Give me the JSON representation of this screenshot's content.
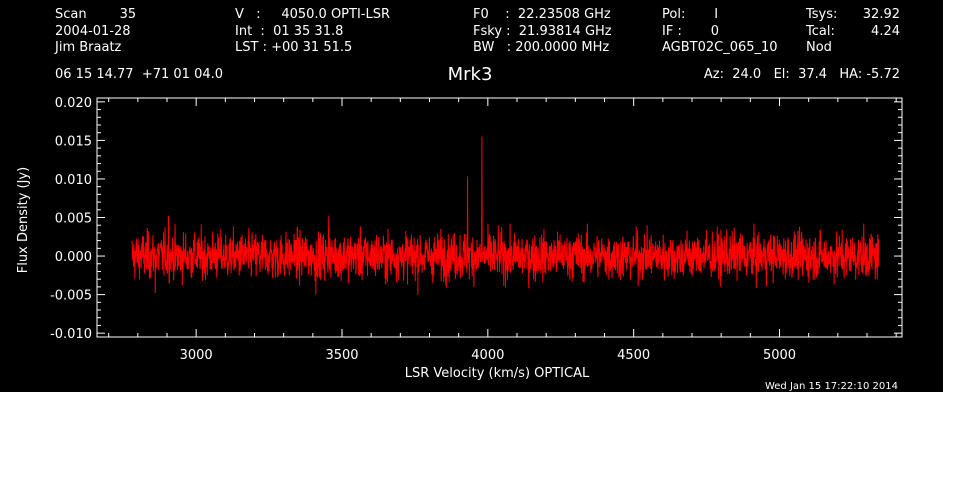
{
  "header": {
    "col1": [
      "Scan        35",
      "2004-01-28",
      "Jim Braatz"
    ],
    "col2": [
      "V   :     4050.0 OPTI-LSR",
      "Int  :  01 35 31.8",
      "LST : +00 31 51.5"
    ],
    "col3": [
      "F0    :  22.23508 GHz",
      "Fsky :  21.93814 GHz",
      "BW   : 200.0000 MHz"
    ],
    "col4": [
      "Pol:       I",
      "IF :       0",
      "AGBT02C_065_10"
    ],
    "col5_labels": [
      "Tsys:",
      "Tcal:",
      "Nod"
    ],
    "col5_values": [
      "32.92",
      "4.24",
      ""
    ],
    "coords": "06 15 14.77  +71 01 04.0",
    "source": "Mrk3",
    "azelha": "Az:  24.0   El:  37.4   HA: -5.72",
    "timestamp": "Wed Jan 15 17:22:10 2014"
  },
  "chart_data": {
    "type": "line",
    "xlabel": "LSR Velocity (km/s) OPTICAL",
    "ylabel": "Flux Density (Jy)",
    "xlim": [
      2660,
      5420
    ],
    "ylim": [
      -0.0105,
      0.0205
    ],
    "xticks": [
      3000,
      3500,
      4000,
      4500,
      5000
    ],
    "xtick_labels": [
      "3000",
      "3500",
      "4000",
      "4500",
      "5000"
    ],
    "yticks": [
      0.02,
      0.015,
      0.01,
      0.005,
      0.0,
      -0.005,
      -0.01
    ],
    "ytick_labels": [
      "0.020",
      "0.015",
      "0.010",
      "0.005",
      "0.000",
      "-0.005",
      "-0.010"
    ],
    "series": [
      {
        "color": "#ff0000",
        "x_range": [
          2780,
          5340
        ],
        "noise_rms": 0.0015,
        "spikes": [
          {
            "x": 3930,
            "y": 0.0103
          },
          {
            "x": 3980,
            "y": 0.0155
          },
          {
            "x": 3455,
            "y": 0.0052
          },
          {
            "x": 2905,
            "y": 0.0052
          },
          {
            "x": 3410,
            "y": -0.005
          },
          {
            "x": 3760,
            "y": -0.005
          },
          {
            "x": 2860,
            "y": -0.0048
          }
        ]
      }
    ]
  }
}
